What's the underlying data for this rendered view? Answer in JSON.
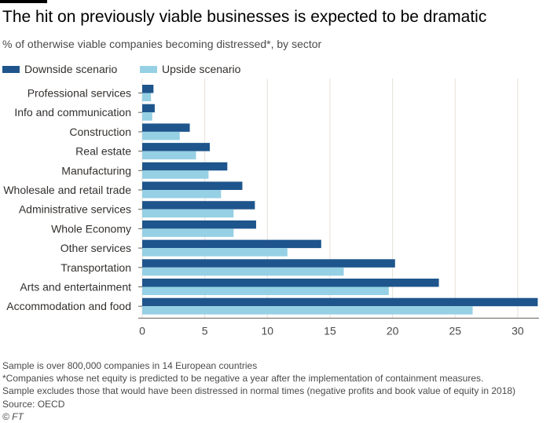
{
  "title": "The hit on previously viable businesses is expected to be dramatic",
  "subtitle": "% of otherwise viable companies becoming distressed*, by sector",
  "legend": [
    {
      "label": "Downside scenario",
      "color": "#1e558c"
    },
    {
      "label": "Upside scenario",
      "color": "#96d0e4"
    }
  ],
  "chart_data": {
    "type": "bar",
    "orientation": "horizontal",
    "categories": [
      "Professional services",
      "Info and communication",
      "Construction",
      "Real estate",
      "Manufacturing",
      "Wholesale and retail trade",
      "Administrative services",
      "Whole Economy",
      "Other services",
      "Transportation",
      "Arts and entertainment",
      "Accommodation and food"
    ],
    "series": [
      {
        "name": "Downside scenario",
        "color": "#1e558c",
        "values": [
          0.9,
          1.0,
          3.8,
          5.4,
          6.8,
          8.0,
          9.0,
          9.1,
          14.3,
          20.2,
          23.7,
          31.6
        ]
      },
      {
        "name": "Upside scenario",
        "color": "#96d0e4",
        "values": [
          0.7,
          0.8,
          3.0,
          4.3,
          5.3,
          6.3,
          7.3,
          7.3,
          11.6,
          16.1,
          19.7,
          26.4
        ]
      }
    ],
    "xlim": [
      0,
      31.7
    ],
    "xticks": [
      0,
      5,
      10,
      15,
      20,
      25,
      30
    ],
    "grid": true,
    "legend_position": "top-left"
  },
  "footnotes": [
    "Sample is over 800,000 companies in 14 European countries",
    "*Companies whose net equity is predicted to be negative a year after the implementation of containment measures.",
    "Sample excludes those that would have been distressed in normal times (negative profits and book value of equity in 2018)",
    "Source: OECD"
  ],
  "credit": "© FT"
}
